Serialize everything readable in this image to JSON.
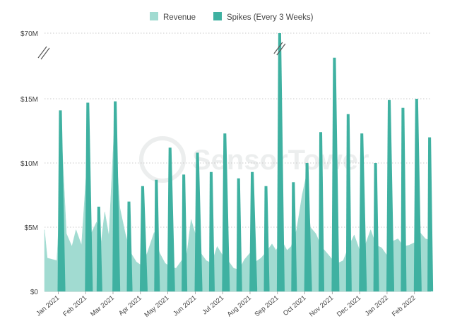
{
  "chart_data": {
    "type": "area",
    "title": "",
    "xlabel": "",
    "ylabel": "",
    "ylim_display": [
      "$0",
      "$70M"
    ],
    "y_ticks": [
      {
        "label": "$0",
        "value": 0
      },
      {
        "label": "$5M",
        "value": 5
      },
      {
        "label": "$10M",
        "value": 10
      },
      {
        "label": "$15M",
        "value": 15
      },
      {
        "label": "$70M",
        "value": 70
      }
    ],
    "axis_break": {
      "from": 18,
      "to": 70
    },
    "x_ticks": [
      "Jan 2021",
      "Feb 2021",
      "Mar 2021",
      "Apr 2021",
      "May 2021",
      "Jun 2021",
      "Jul 2021",
      "Aug 2021",
      "Sep 2021",
      "Oct 2021",
      "Nov 2021",
      "Dec 2021",
      "Jan 2022",
      "Feb 2022"
    ],
    "x_tick_months": [
      0.5,
      1.5,
      2.5,
      3.5,
      4.5,
      5.5,
      6.5,
      7.5,
      8.5,
      9.5,
      10.5,
      11.5,
      12.5,
      13.5
    ],
    "x_range_months": [
      0,
      14.1
    ],
    "legend": {
      "placement": "top-center",
      "items": [
        {
          "label": "Revenue",
          "color": "#a1dbd1"
        },
        {
          "label": "Spikes (Every 3 Weeks)",
          "color": "#3fb1a1"
        }
      ]
    },
    "series": [
      {
        "name": "Revenue",
        "unit": "$M",
        "baseline_points": [
          [
            0.0,
            4.8
          ],
          [
            0.1,
            2.6
          ],
          [
            0.45,
            2.4
          ],
          [
            0.65,
            11.0
          ],
          [
            0.8,
            4.5
          ],
          [
            1.0,
            3.5
          ],
          [
            1.15,
            4.8
          ],
          [
            1.35,
            3.6
          ],
          [
            1.55,
            10.0
          ],
          [
            1.7,
            4.5
          ],
          [
            1.9,
            5.4
          ],
          [
            2.05,
            3.5
          ],
          [
            2.2,
            6.2
          ],
          [
            2.35,
            4.3
          ],
          [
            2.55,
            13.0
          ],
          [
            2.75,
            6.5
          ],
          [
            2.95,
            4.5
          ],
          [
            3.15,
            3.0
          ],
          [
            3.35,
            2.3
          ],
          [
            3.55,
            2.0
          ],
          [
            3.75,
            3.0
          ],
          [
            4.0,
            4.6
          ],
          [
            4.2,
            3.0
          ],
          [
            4.4,
            2.2
          ],
          [
            4.6,
            1.9
          ],
          [
            4.8,
            1.8
          ],
          [
            5.0,
            2.4
          ],
          [
            5.2,
            3.0
          ],
          [
            5.35,
            5.6
          ],
          [
            5.5,
            4.5
          ],
          [
            5.7,
            3.0
          ],
          [
            5.9,
            2.4
          ],
          [
            6.1,
            2.2
          ],
          [
            6.3,
            3.5
          ],
          [
            6.5,
            2.8
          ],
          [
            6.7,
            2.4
          ],
          [
            6.9,
            1.8
          ],
          [
            7.1,
            1.7
          ],
          [
            7.3,
            2.5
          ],
          [
            7.5,
            3.0
          ],
          [
            7.7,
            2.3
          ],
          [
            7.9,
            2.6
          ],
          [
            8.1,
            3.1
          ],
          [
            8.3,
            3.7
          ],
          [
            8.45,
            3.2
          ],
          [
            8.65,
            4.0
          ],
          [
            8.85,
            3.2
          ],
          [
            9.0,
            3.5
          ],
          [
            9.2,
            4.8
          ],
          [
            9.4,
            7.5
          ],
          [
            9.55,
            9.0
          ],
          [
            9.7,
            5.0
          ],
          [
            9.9,
            4.5
          ],
          [
            10.1,
            3.5
          ],
          [
            10.3,
            3.0
          ],
          [
            10.5,
            2.5
          ],
          [
            10.7,
            2.2
          ],
          [
            10.9,
            2.4
          ],
          [
            11.1,
            3.5
          ],
          [
            11.3,
            4.4
          ],
          [
            11.5,
            3.2
          ],
          [
            11.7,
            3.6
          ],
          [
            11.9,
            4.8
          ],
          [
            12.1,
            3.6
          ],
          [
            12.3,
            3.4
          ],
          [
            12.5,
            2.8
          ],
          [
            12.7,
            3.9
          ],
          [
            12.9,
            4.1
          ],
          [
            13.1,
            3.5
          ],
          [
            13.3,
            3.6
          ],
          [
            13.5,
            3.8
          ],
          [
            13.7,
            4.6
          ],
          [
            13.9,
            4.1
          ],
          [
            14.05,
            4.0
          ],
          [
            14.1,
            3.7
          ]
        ]
      },
      {
        "name": "Spikes (Every 3 Weeks)",
        "unit": "$M",
        "spikes": [
          {
            "x": 0.58,
            "peak": 14.1
          },
          {
            "x": 1.58,
            "peak": 14.7
          },
          {
            "x": 2.58,
            "peak": 14.8
          },
          {
            "x": 3.58,
            "peak": 8.2
          },
          {
            "x": 4.58,
            "peak": 11.2
          },
          {
            "x": 5.58,
            "peak": 10.8
          },
          {
            "x": 6.58,
            "peak": 12.3
          },
          {
            "x": 7.58,
            "peak": 9.3
          },
          {
            "x": 8.58,
            "peak": 70
          },
          {
            "x": 9.58,
            "peak": 10.0
          },
          {
            "x": 10.58,
            "peak": 18.2
          },
          {
            "x": 11.58,
            "peak": 12.3
          },
          {
            "x": 12.58,
            "peak": 14.9
          },
          {
            "x": 13.58,
            "peak": 15.0
          }
        ],
        "extra_spikes": [
          {
            "x": 1.98,
            "peak": 6.6
          },
          {
            "x": 3.08,
            "peak": 7.0
          },
          {
            "x": 4.08,
            "peak": 8.7
          },
          {
            "x": 5.08,
            "peak": 9.1
          },
          {
            "x": 6.08,
            "peak": 9.3
          },
          {
            "x": 7.08,
            "peak": 8.8
          },
          {
            "x": 8.08,
            "peak": 8.2
          },
          {
            "x": 9.08,
            "peak": 8.5
          },
          {
            "x": 10.08,
            "peak": 12.4
          },
          {
            "x": 11.08,
            "peak": 13.8
          },
          {
            "x": 12.08,
            "peak": 10.0
          },
          {
            "x": 13.08,
            "peak": 14.3
          },
          {
            "x": 14.05,
            "peak": 12.0
          }
        ]
      }
    ],
    "watermark": "SensorTower",
    "grid": true
  }
}
